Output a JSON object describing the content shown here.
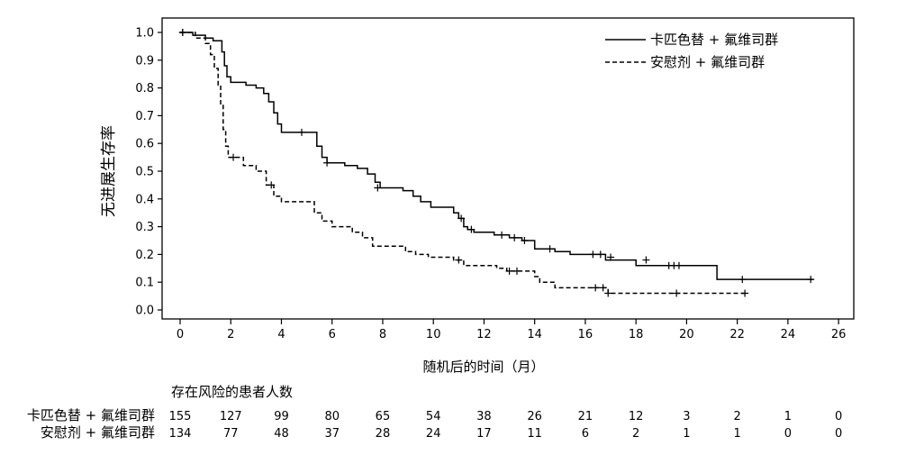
{
  "chart_data": {
    "type": "line",
    "ylabel": "无进展生存率",
    "xlabel": "随机后的时间（月）",
    "xlim": [
      0,
      26
    ],
    "ylim": [
      0,
      1
    ],
    "xticks": [
      "0",
      "2",
      "4",
      "6",
      "8",
      "10",
      "12",
      "14",
      "16",
      "18",
      "20",
      "22",
      "24",
      "26"
    ],
    "yticks": [
      "0.0",
      "0.1",
      "0.2",
      "0.3",
      "0.4",
      "0.5",
      "0.6",
      "0.7",
      "0.8",
      "0.9",
      "1.0"
    ],
    "legend_position": "top-right",
    "series": [
      {
        "name": "卡匹色替 + 氟维司群",
        "style": "solid",
        "points": [
          [
            0,
            1.0
          ],
          [
            0.5,
            1.0
          ],
          [
            0.5,
            0.99
          ],
          [
            1.0,
            0.99
          ],
          [
            1.0,
            0.98
          ],
          [
            1.3,
            0.98
          ],
          [
            1.3,
            0.97
          ],
          [
            1.65,
            0.97
          ],
          [
            1.65,
            0.93
          ],
          [
            1.75,
            0.93
          ],
          [
            1.75,
            0.88
          ],
          [
            1.85,
            0.88
          ],
          [
            1.85,
            0.84
          ],
          [
            2.0,
            0.84
          ],
          [
            2.0,
            0.82
          ],
          [
            2.6,
            0.82
          ],
          [
            2.6,
            0.81
          ],
          [
            3.0,
            0.81
          ],
          [
            3.0,
            0.8
          ],
          [
            3.3,
            0.8
          ],
          [
            3.3,
            0.78
          ],
          [
            3.5,
            0.78
          ],
          [
            3.5,
            0.75
          ],
          [
            3.7,
            0.75
          ],
          [
            3.7,
            0.71
          ],
          [
            3.85,
            0.71
          ],
          [
            3.85,
            0.67
          ],
          [
            4.0,
            0.67
          ],
          [
            4.0,
            0.64
          ],
          [
            5.4,
            0.64
          ],
          [
            5.4,
            0.59
          ],
          [
            5.6,
            0.59
          ],
          [
            5.6,
            0.55
          ],
          [
            5.8,
            0.55
          ],
          [
            5.8,
            0.53
          ],
          [
            6.5,
            0.53
          ],
          [
            6.5,
            0.52
          ],
          [
            7.0,
            0.52
          ],
          [
            7.0,
            0.51
          ],
          [
            7.4,
            0.51
          ],
          [
            7.4,
            0.49
          ],
          [
            7.7,
            0.49
          ],
          [
            7.7,
            0.46
          ],
          [
            7.9,
            0.46
          ],
          [
            7.9,
            0.44
          ],
          [
            8.8,
            0.44
          ],
          [
            8.8,
            0.43
          ],
          [
            9.2,
            0.43
          ],
          [
            9.2,
            0.41
          ],
          [
            9.5,
            0.41
          ],
          [
            9.5,
            0.39
          ],
          [
            9.9,
            0.39
          ],
          [
            9.9,
            0.37
          ],
          [
            10.8,
            0.37
          ],
          [
            10.8,
            0.35
          ],
          [
            11.0,
            0.35
          ],
          [
            11.0,
            0.33
          ],
          [
            11.2,
            0.33
          ],
          [
            11.2,
            0.3
          ],
          [
            11.35,
            0.3
          ],
          [
            11.35,
            0.29
          ],
          [
            11.6,
            0.29
          ],
          [
            11.6,
            0.28
          ],
          [
            12.4,
            0.28
          ],
          [
            12.4,
            0.27
          ],
          [
            13.0,
            0.27
          ],
          [
            13.0,
            0.26
          ],
          [
            13.5,
            0.26
          ],
          [
            13.5,
            0.25
          ],
          [
            14.0,
            0.25
          ],
          [
            14.0,
            0.22
          ],
          [
            14.8,
            0.22
          ],
          [
            14.8,
            0.21
          ],
          [
            15.4,
            0.21
          ],
          [
            15.4,
            0.2
          ],
          [
            16.8,
            0.2
          ],
          [
            16.8,
            0.18
          ],
          [
            18.0,
            0.18
          ],
          [
            18.0,
            0.16
          ],
          [
            21.2,
            0.16
          ],
          [
            21.2,
            0.11
          ],
          [
            25.0,
            0.11
          ]
        ],
        "censored": [
          [
            0.1,
            1.0
          ],
          [
            4.8,
            0.64
          ],
          [
            5.8,
            0.53
          ],
          [
            7.8,
            0.44
          ],
          [
            11.1,
            0.33
          ],
          [
            11.5,
            0.29
          ],
          [
            12.7,
            0.27
          ],
          [
            13.2,
            0.26
          ],
          [
            13.6,
            0.25
          ],
          [
            14.6,
            0.22
          ],
          [
            16.3,
            0.2
          ],
          [
            16.6,
            0.2
          ],
          [
            17.0,
            0.19
          ],
          [
            18.4,
            0.18
          ],
          [
            19.3,
            0.16
          ],
          [
            19.5,
            0.16
          ],
          [
            19.7,
            0.16
          ],
          [
            22.2,
            0.11
          ],
          [
            24.9,
            0.11
          ]
        ]
      },
      {
        "name": "安慰剂 + 氟维司群",
        "style": "dashed",
        "points": [
          [
            0,
            1.0
          ],
          [
            0.6,
            1.0
          ],
          [
            0.6,
            0.98
          ],
          [
            1.0,
            0.98
          ],
          [
            1.0,
            0.96
          ],
          [
            1.2,
            0.96
          ],
          [
            1.2,
            0.92
          ],
          [
            1.35,
            0.92
          ],
          [
            1.35,
            0.87
          ],
          [
            1.5,
            0.87
          ],
          [
            1.5,
            0.81
          ],
          [
            1.6,
            0.81
          ],
          [
            1.6,
            0.74
          ],
          [
            1.7,
            0.74
          ],
          [
            1.7,
            0.65
          ],
          [
            1.8,
            0.65
          ],
          [
            1.8,
            0.59
          ],
          [
            1.9,
            0.59
          ],
          [
            1.9,
            0.55
          ],
          [
            2.5,
            0.55
          ],
          [
            2.5,
            0.52
          ],
          [
            3.0,
            0.52
          ],
          [
            3.0,
            0.5
          ],
          [
            3.4,
            0.5
          ],
          [
            3.4,
            0.45
          ],
          [
            3.7,
            0.45
          ],
          [
            3.7,
            0.41
          ],
          [
            4.0,
            0.41
          ],
          [
            4.0,
            0.39
          ],
          [
            5.3,
            0.39
          ],
          [
            5.3,
            0.35
          ],
          [
            5.6,
            0.35
          ],
          [
            5.6,
            0.32
          ],
          [
            6.0,
            0.32
          ],
          [
            6.0,
            0.3
          ],
          [
            6.8,
            0.3
          ],
          [
            6.8,
            0.28
          ],
          [
            7.2,
            0.28
          ],
          [
            7.2,
            0.26
          ],
          [
            7.6,
            0.26
          ],
          [
            7.6,
            0.23
          ],
          [
            8.9,
            0.23
          ],
          [
            8.9,
            0.21
          ],
          [
            9.3,
            0.21
          ],
          [
            9.3,
            0.2
          ],
          [
            9.8,
            0.2
          ],
          [
            9.8,
            0.19
          ],
          [
            10.8,
            0.19
          ],
          [
            10.8,
            0.18
          ],
          [
            11.2,
            0.18
          ],
          [
            11.2,
            0.16
          ],
          [
            12.5,
            0.16
          ],
          [
            12.5,
            0.15
          ],
          [
            12.9,
            0.15
          ],
          [
            12.9,
            0.14
          ],
          [
            14.0,
            0.14
          ],
          [
            14.0,
            0.12
          ],
          [
            14.2,
            0.12
          ],
          [
            14.2,
            0.1
          ],
          [
            14.8,
            0.1
          ],
          [
            14.8,
            0.08
          ],
          [
            16.9,
            0.08
          ],
          [
            16.9,
            0.06
          ],
          [
            22.3,
            0.06
          ]
        ],
        "censored": [
          [
            0.1,
            1.0
          ],
          [
            2.1,
            0.55
          ],
          [
            3.6,
            0.45
          ],
          [
            11.0,
            0.18
          ],
          [
            13.0,
            0.14
          ],
          [
            13.3,
            0.14
          ],
          [
            16.4,
            0.08
          ],
          [
            16.7,
            0.08
          ],
          [
            16.9,
            0.06
          ],
          [
            19.6,
            0.06
          ],
          [
            22.3,
            0.06
          ]
        ]
      }
    ]
  },
  "risk_table": {
    "title": "存在风险的患者人数",
    "rows": [
      {
        "label": "卡匹色替 + 氟维司群",
        "values": [
          "155",
          "127",
          "99",
          "80",
          "65",
          "54",
          "38",
          "26",
          "21",
          "12",
          "3",
          "2",
          "1",
          "0"
        ]
      },
      {
        "label": "安慰剂 + 氟维司群",
        "values": [
          "134",
          "77",
          "48",
          "37",
          "28",
          "24",
          "17",
          "11",
          "6",
          "2",
          "1",
          "1",
          "0",
          "0"
        ]
      }
    ]
  }
}
